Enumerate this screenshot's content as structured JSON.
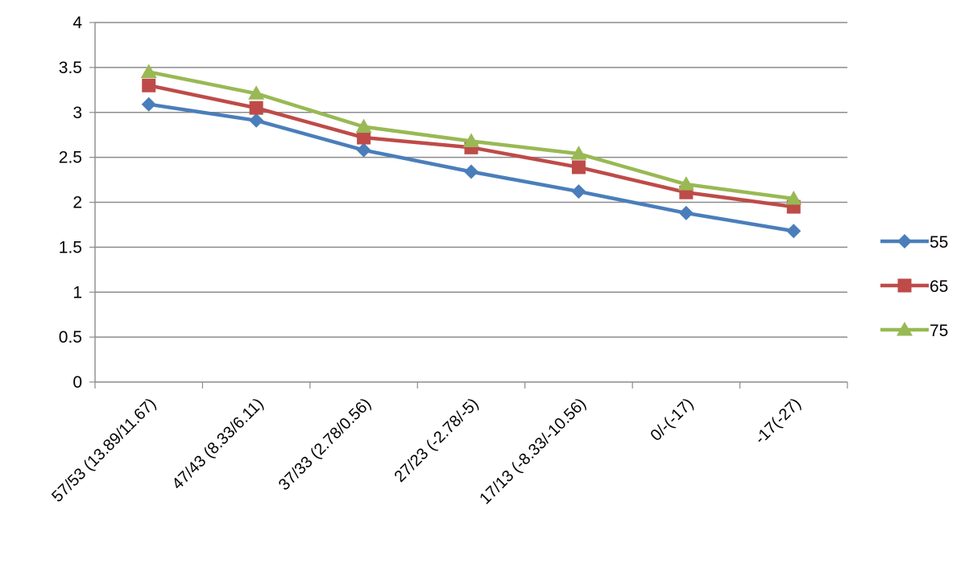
{
  "chart_data": {
    "type": "line",
    "categories": [
      "57/53 (13.89/11.67)",
      "47/43 (8.33/6.11)",
      "37/33 (2.78/0.56)",
      "27/23 (-2.78/-5)",
      "17/13 (-8.33/-10.56)",
      "0/-(-17)",
      "-17(-27)"
    ],
    "series": [
      {
        "name": "55",
        "color": "#4A7EBB",
        "marker": "diamond",
        "values": [
          3.09,
          2.91,
          2.58,
          2.34,
          2.12,
          1.88,
          1.68
        ]
      },
      {
        "name": "65",
        "color": "#BE4B48",
        "marker": "square",
        "values": [
          3.3,
          3.05,
          2.72,
          2.61,
          2.39,
          2.11,
          1.95
        ]
      },
      {
        "name": "75",
        "color": "#98B954",
        "marker": "triangle",
        "values": [
          3.45,
          3.21,
          2.84,
          2.68,
          2.54,
          2.2,
          2.04
        ]
      }
    ],
    "title": "",
    "xlabel": "",
    "ylabel": "",
    "ylim": [
      0,
      4
    ],
    "yticks": [
      "0",
      "0.5",
      "1",
      "1.5",
      "2",
      "2.5",
      "3",
      "3.5",
      "4"
    ],
    "grid": true,
    "legend": "right"
  }
}
